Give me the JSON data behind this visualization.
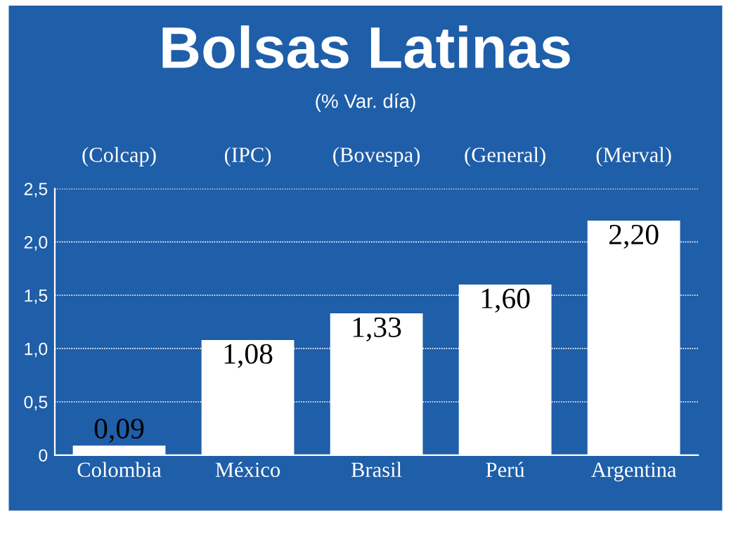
{
  "chart_data": {
    "type": "bar",
    "title": "Bolsas Latinas",
    "subtitle": "(% Var. día)",
    "categories": [
      "Colombia",
      "México",
      "Brasil",
      "Perú",
      "Argentina"
    ],
    "values": [
      0.09,
      1.08,
      1.33,
      1.6,
      2.2
    ],
    "value_labels": [
      "0,09",
      "1,08",
      "1,33",
      "1,60",
      "2,20"
    ],
    "color": "#ffffff",
    "ylim": [
      0,
      2.5
    ],
    "yticks": [
      0,
      {
        "value": 0.5,
        "label": "0,5"
      },
      {
        "value": 1.0,
        "label": "1,0"
      },
      {
        "value": 1.5,
        "label": "1,5"
      },
      {
        "value": 2.0,
        "label": "2,0"
      },
      {
        "value": 2.5,
        "label": "2,5"
      }
    ],
    "grid": "y",
    "annotations": [
      "(Colcap)",
      "(IPC)",
      "(Bovespa)",
      "(General)",
      "(Merval)"
    ]
  }
}
